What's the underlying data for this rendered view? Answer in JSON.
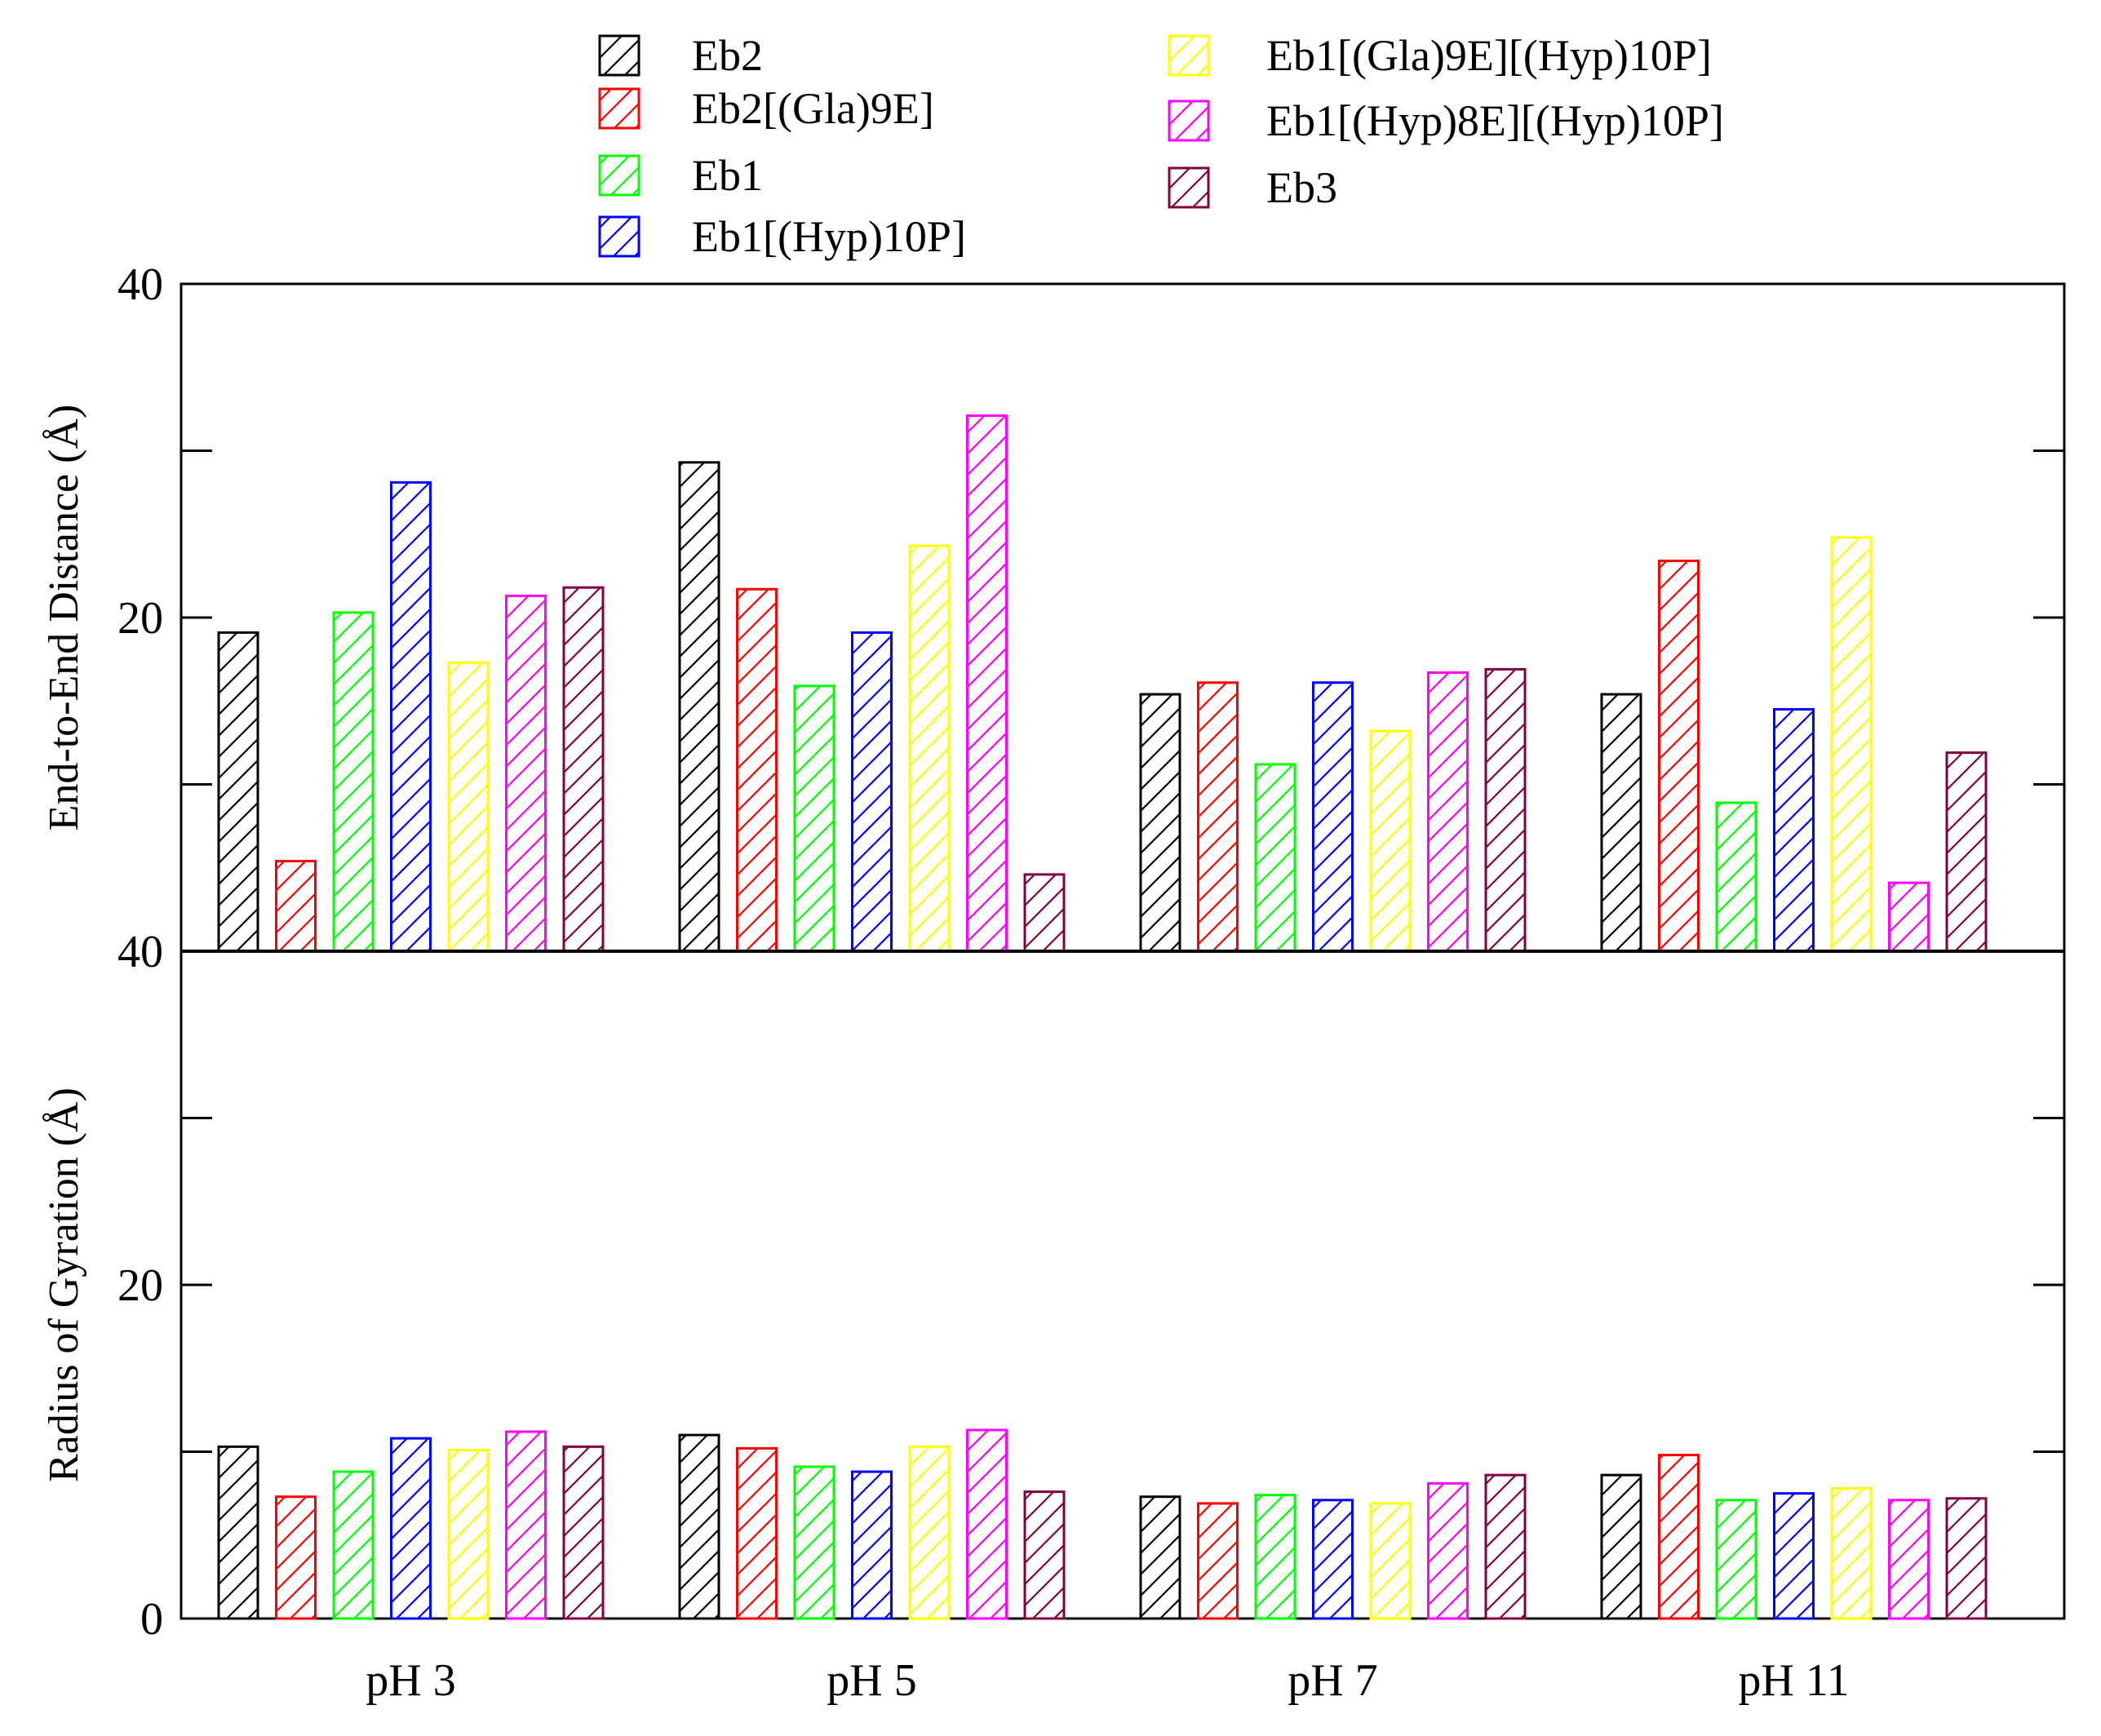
{
  "chart_data": {
    "type": "bar",
    "categories": [
      "pH 3",
      "pH 5",
      "pH 7",
      "pH 11"
    ],
    "series": [
      {
        "name": "Eb2",
        "color": "#000000"
      },
      {
        "name": "Eb2[(Gla)9E]",
        "color": "#ff0000"
      },
      {
        "name": "Eb1",
        "color": "#00ff00"
      },
      {
        "name": "Eb1[(Hyp)10P]",
        "color": "#0000ff"
      },
      {
        "name": "Eb1[(Gla)9E][(Hyp)10P]",
        "color": "#ffff00"
      },
      {
        "name": "Eb1[(Hyp)8E][(Hyp)10P]",
        "color": "#ff00ff"
      },
      {
        "name": "Eb3",
        "color": "#800040"
      }
    ],
    "panels": [
      {
        "ylabel": "End-to-End Distance (Å)",
        "ylim": [
          0,
          40
        ],
        "yticks": [
          40,
          20
        ],
        "values": [
          [
            19.1,
            5.4,
            20.3,
            28.1,
            17.3,
            21.3,
            21.8
          ],
          [
            29.3,
            21.7,
            15.9,
            19.1,
            24.3,
            32.1,
            4.6
          ],
          [
            15.4,
            16.1,
            11.2,
            16.1,
            13.2,
            16.7,
            16.9
          ],
          [
            15.4,
            23.4,
            8.9,
            14.5,
            24.8,
            4.1,
            11.9
          ]
        ]
      },
      {
        "ylabel": "Radius of Gyration (Å)",
        "ylim": [
          0,
          40
        ],
        "yticks": [
          40,
          20,
          0
        ],
        "values": [
          [
            10.3,
            7.3,
            8.8,
            10.8,
            10.1,
            11.2,
            10.3
          ],
          [
            11.0,
            10.2,
            9.1,
            8.8,
            10.3,
            11.3,
            7.6
          ],
          [
            7.3,
            6.9,
            7.4,
            7.1,
            6.9,
            8.1,
            8.6
          ],
          [
            8.6,
            9.8,
            7.1,
            7.5,
            7.8,
            7.1,
            7.2
          ]
        ]
      }
    ]
  }
}
